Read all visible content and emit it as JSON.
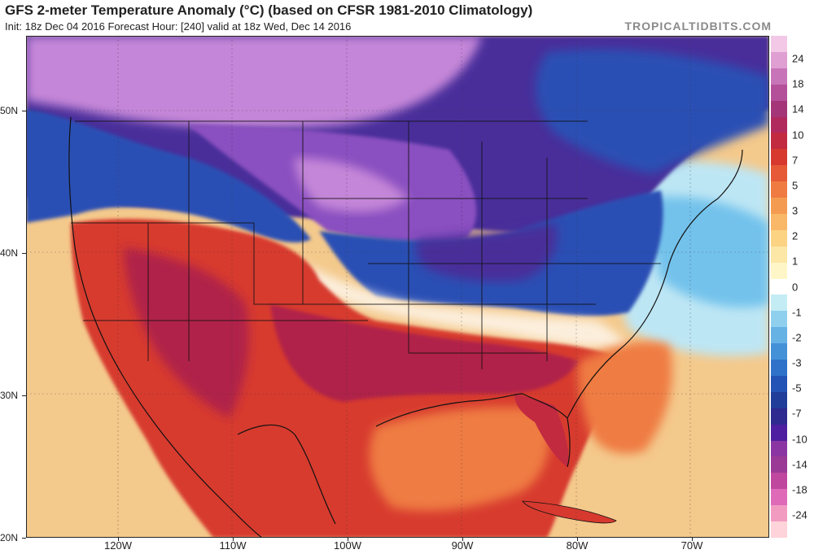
{
  "header": {
    "title": "GFS 2-meter Temperature Anomaly (°C) (based on CFSR 1981-2010 Climatology)",
    "subtitle": "Init: 18z Dec 04 2016   Forecast Hour: [240]   valid at 18z Wed, Dec 14 2016",
    "brand": "TROPICALTIDBITS.COM"
  },
  "axes": {
    "lat": [
      {
        "label": "50N",
        "value": 50
      },
      {
        "label": "40N",
        "value": 40
      },
      {
        "label": "30N",
        "value": 30
      },
      {
        "label": "20N",
        "value": 20
      }
    ],
    "lon": [
      {
        "label": "120W",
        "value": -120
      },
      {
        "label": "110W",
        "value": -110
      },
      {
        "label": "100W",
        "value": -100
      },
      {
        "label": "90W",
        "value": -90
      },
      {
        "label": "80W",
        "value": -80
      },
      {
        "label": "70W",
        "value": -70
      }
    ]
  },
  "colorbar": {
    "labels": [
      "24",
      "18",
      "14",
      "10",
      "7",
      "5",
      "3",
      "2",
      "1",
      "0",
      "-1",
      "-2",
      "-3",
      "-5",
      "-7",
      "-10",
      "-14",
      "-18",
      "-24"
    ],
    "colors": [
      "#ffd3da",
      "#f19bc0",
      "#de6ab8",
      "#c0479e",
      "#9a3a96",
      "#8a35a2",
      "#4e1fa0",
      "#2e2a8f",
      "#1f3d99",
      "#2253b5",
      "#2f72c9",
      "#4591d8",
      "#66b2e5",
      "#8fd0ee",
      "#c4ecf5",
      "#ffffff",
      "#fff6c8",
      "#fde7a6",
      "#fbd383",
      "#f8b867",
      "#f49b52",
      "#ef7b43",
      "#e65a37",
      "#d7392f",
      "#c22a40",
      "#b12a5e",
      "#a43578",
      "#b4509a",
      "#c874b8",
      "#df9fd2",
      "#f2c8e6"
    ]
  },
  "map": {
    "colors": {
      "ocean_warm": "#f4c98c",
      "ocean_cool": "#bde6f4",
      "warm_land": "#d73a2f",
      "hot_core": "#b02348",
      "cold_blue": "#2a4fb4",
      "deep_cold": "#4a2f9a",
      "purple_cold": "#8a4fc0",
      "pink_cold": "#c486d8",
      "atlantic_blue": "#73c2ec"
    }
  }
}
